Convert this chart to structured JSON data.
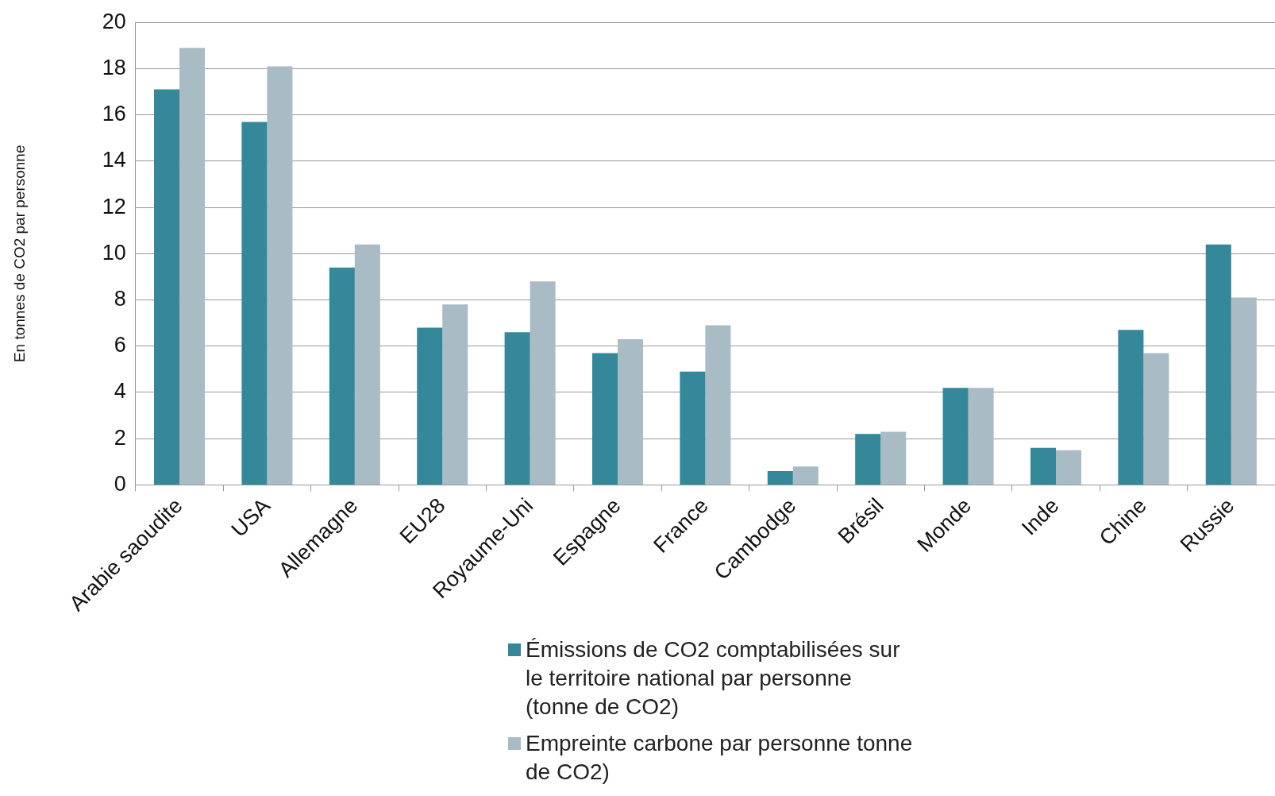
{
  "chart_data": {
    "type": "bar",
    "ylabel": "En tonnes de CO2 par personne",
    "categories": [
      "Arabie saoudite",
      "USA",
      "Allemagne",
      "EU28",
      "Royaume-Uni",
      "Espagne",
      "France",
      "Cambodge",
      "Brésil",
      "Monde",
      "Inde",
      "Chine",
      "Russie"
    ],
    "series": [
      {
        "name": "Émissions de CO2 comptabilisées sur le territoire national par personne (tonne de CO2)",
        "color": "#34889a",
        "values": [
          17.1,
          15.7,
          9.4,
          6.8,
          6.6,
          5.7,
          4.9,
          0.6,
          2.2,
          4.2,
          1.6,
          6.7,
          10.4
        ]
      },
      {
        "name": "Empreinte carbone par personne tonne de CO2)",
        "color": "#a9bbc4",
        "values": [
          18.9,
          18.1,
          10.4,
          7.8,
          8.8,
          6.3,
          6.9,
          0.8,
          2.3,
          4.2,
          1.5,
          5.7,
          8.1
        ]
      }
    ],
    "ylim": [
      0,
      20
    ],
    "yticks": [
      0,
      2,
      4,
      6,
      8,
      10,
      12,
      14,
      16,
      18,
      20
    ],
    "grid": "y",
    "legend": "bottom"
  }
}
